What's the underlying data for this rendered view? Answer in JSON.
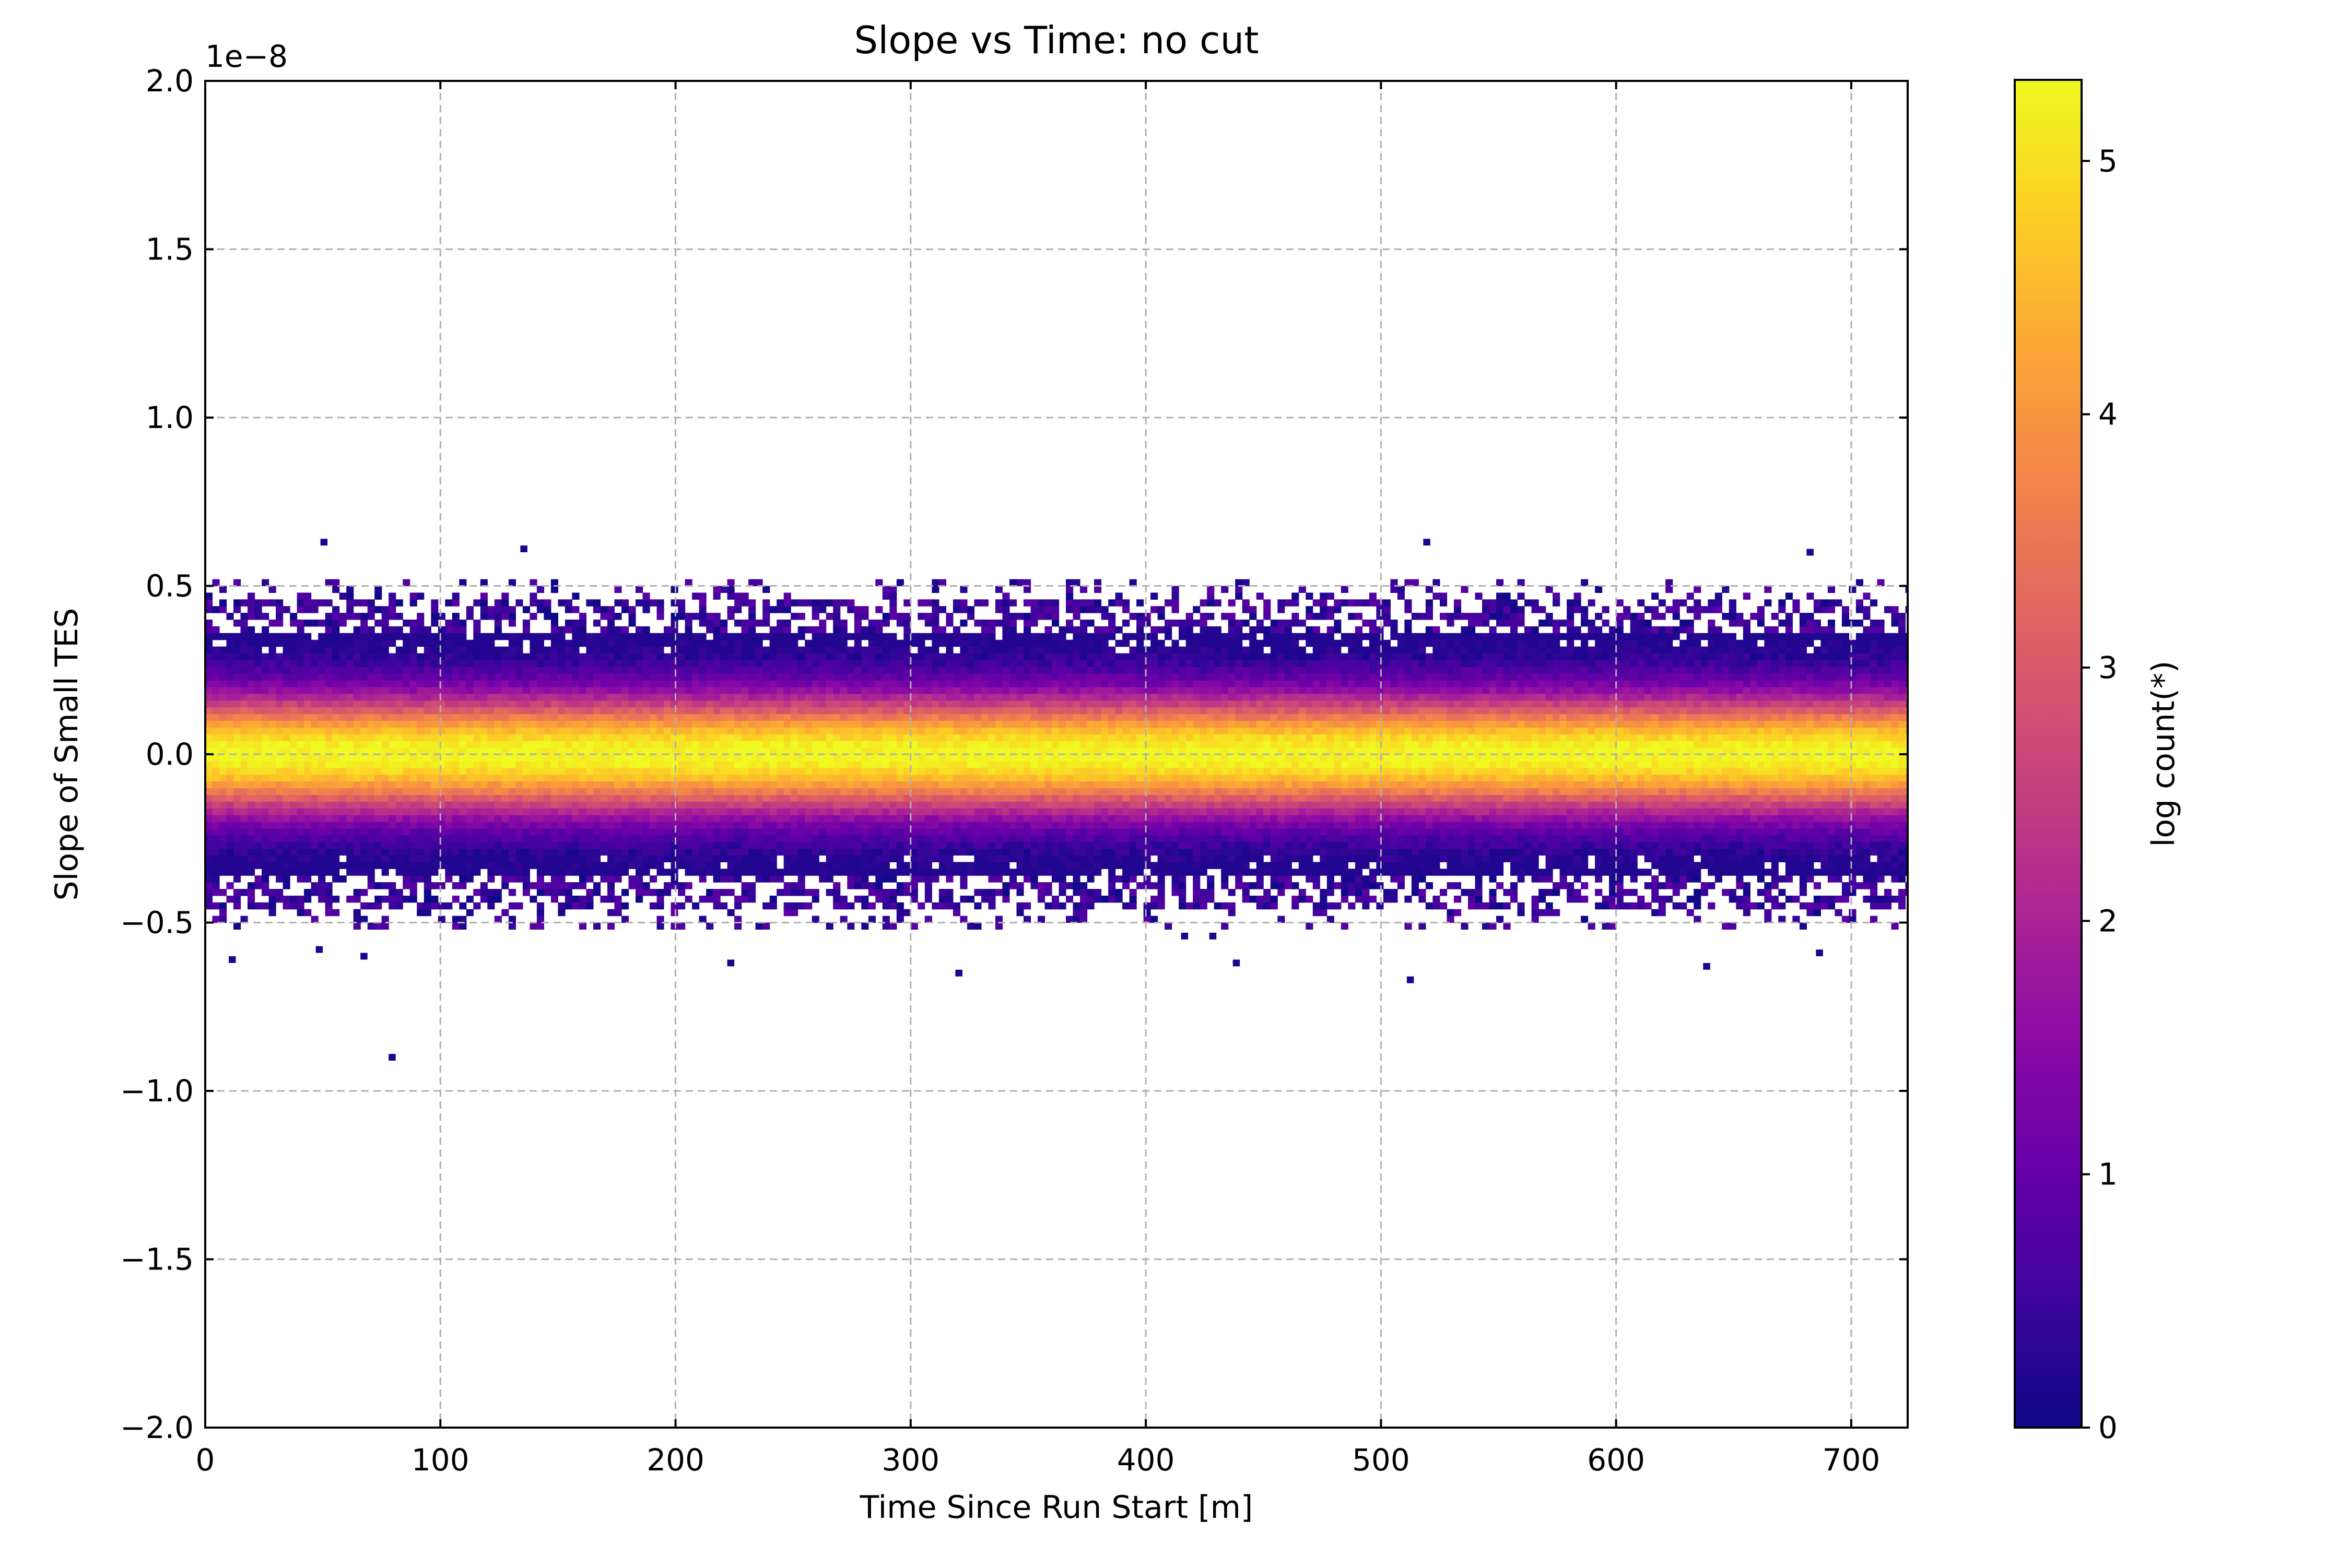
{
  "chart_data": {
    "type": "heatmap",
    "title": "Slope vs Time: no cut",
    "xlabel": "Time Since Run Start [m]",
    "ylabel": "Slope of Small TES",
    "y_offset_text": "1e−8",
    "xlim": [
      0,
      724
    ],
    "ylim": [
      -2.0,
      2.0
    ],
    "x_ticks": [
      0,
      100,
      200,
      300,
      400,
      500,
      600,
      700
    ],
    "x_tick_labels": [
      "0",
      "100",
      "200",
      "300",
      "400",
      "500",
      "600",
      "700"
    ],
    "y_ticks": [
      -2.0,
      -1.5,
      -1.0,
      -0.5,
      0.0,
      0.5,
      1.0,
      1.5,
      2.0
    ],
    "y_tick_labels": [
      "−2.0",
      "−1.5",
      "−1.0",
      "−0.5",
      "0.0",
      "0.5",
      "1.0",
      "1.5",
      "2.0"
    ],
    "grid": true,
    "band": {
      "center": 0.0,
      "dense_halfwidth": 0.4,
      "sparse_halfwidth": 0.52
    },
    "outliers": [
      {
        "x": 49,
        "y": 0.62
      },
      {
        "x": 134,
        "y": 0.6
      },
      {
        "x": 518,
        "y": 0.62
      },
      {
        "x": 681,
        "y": 0.59
      },
      {
        "x": 10,
        "y": -0.62
      },
      {
        "x": 47,
        "y": -0.59
      },
      {
        "x": 66,
        "y": -0.61
      },
      {
        "x": 78,
        "y": -0.91
      },
      {
        "x": 222,
        "y": -0.63
      },
      {
        "x": 319,
        "y": -0.66
      },
      {
        "x": 415,
        "y": -0.55
      },
      {
        "x": 427,
        "y": -0.55
      },
      {
        "x": 437,
        "y": -0.63
      },
      {
        "x": 511,
        "y": -0.68
      },
      {
        "x": 637,
        "y": -0.64
      },
      {
        "x": 685,
        "y": -0.6
      }
    ],
    "colorbar": {
      "label": "log count(*)",
      "range": [
        0,
        5.32
      ],
      "ticks": [
        0,
        1,
        2,
        3,
        4,
        5
      ],
      "tick_labels": [
        "0",
        "1",
        "2",
        "3",
        "4",
        "5"
      ],
      "colormap": "plasma"
    }
  }
}
